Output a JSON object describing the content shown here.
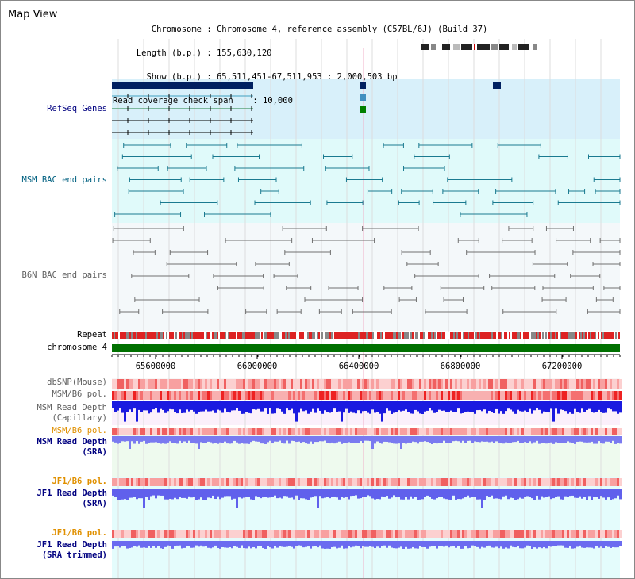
{
  "window": {
    "title": "Map View"
  },
  "info": {
    "chromosome_key": "Chromosome",
    "chromosome_val": "Chromosome 4, reference assembly (C57BL/6J) (Build 37)",
    "length_key": "Length (b.p.)",
    "length_val": "155,630,120",
    "show_key": "Show (b.p.)",
    "show_val": "65,511,451-67,511,953 : 2,000,503 bp",
    "read_key": "Read coverage check span",
    "read_val": "10,000"
  },
  "tracks": {
    "refseq": "RefSeq Genes",
    "msm_bac": "MSM BAC end pairs",
    "b6n_bac": "B6N BAC end pairs",
    "repeat": "Repeat",
    "chromosome": "chromosome 4",
    "dbsnp": "dbSNP(Mouse)",
    "msm_b6_pol_1": "MSM/B6 pol.",
    "msm_read_depth_cap_1": "MSM Read Depth",
    "msm_read_depth_cap_2": "(Capillary)",
    "msm_b6_pol_2": "MSM/B6 pol.",
    "msm_read_depth_sra_1": "MSM Read Depth",
    "msm_read_depth_sra_2": "(SRA)",
    "jf1_b6_pol_1": "JF1/B6 pol.",
    "jf1_read_depth_sra_1": "JF1 Read Depth",
    "jf1_read_depth_sra_2": "(SRA)",
    "jf1_b6_pol_2": "JF1/B6 pol.",
    "jf1_read_depth_trim_1": "JF1 Read Depth",
    "jf1_read_depth_trim_2": "(SRA trimmed)"
  },
  "axis": {
    "ticks": [
      "65600000",
      "66000000",
      "66400000",
      "66800000",
      "67200000"
    ]
  },
  "colors": {
    "navy_label": "#000080",
    "teal_label": "#006080",
    "gray_label": "#606060",
    "orange_label": "#e09000",
    "refseq_bg": "#d8f0fa",
    "msm_bac_bg": "#e0fafa",
    "b6n_bg": "#f4f8fa",
    "chrom_green": "#007000",
    "read_depth_blue": "#0000dd",
    "read_depth_light": "#7777ee",
    "pol_red": "#ee3333"
  }
}
